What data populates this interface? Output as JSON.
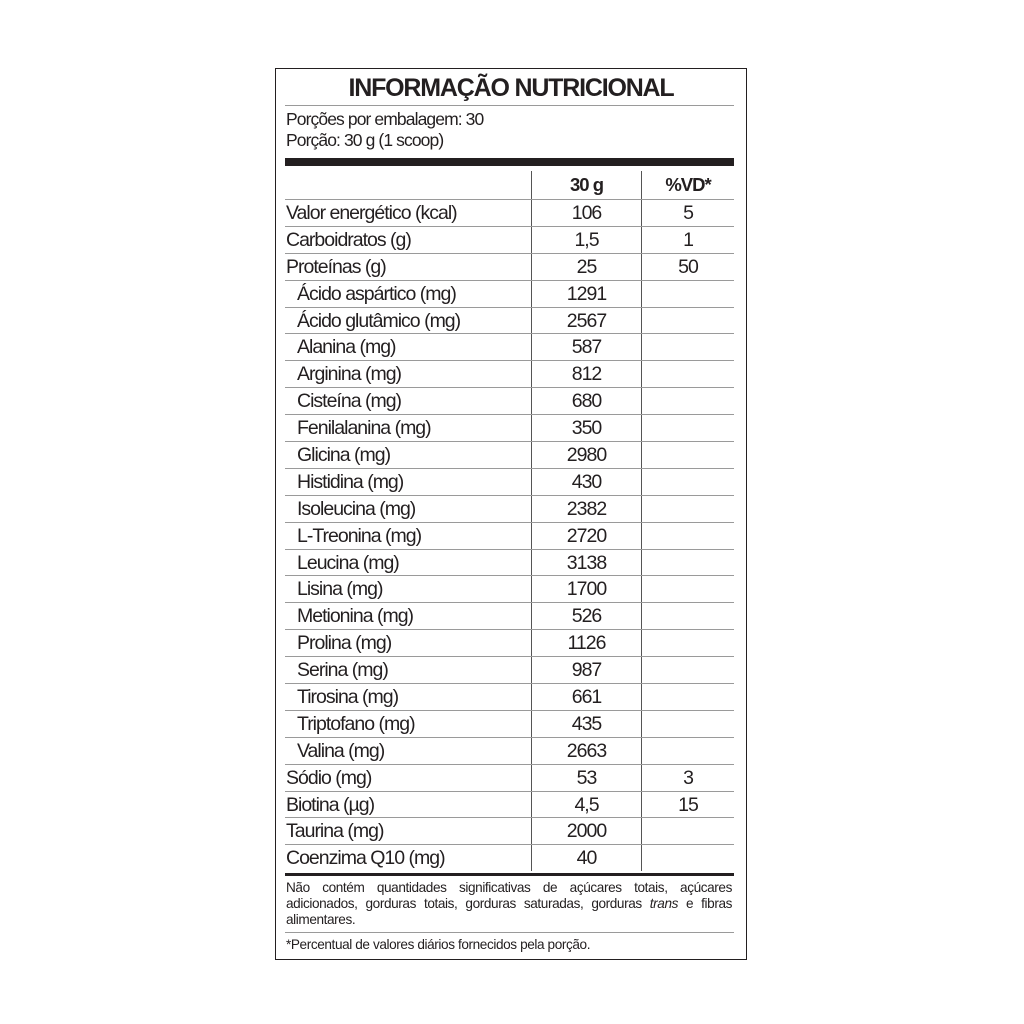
{
  "title": "INFORMAÇÃO NUTRICIONAL",
  "servings_per_package": "Porções por embalagem: 30",
  "serving_size": "Porção: 30 g (1 scoop)",
  "columns": {
    "amount": "30 g",
    "dv": "%VD*"
  },
  "rows": [
    {
      "name": "Valor energético (kcal)",
      "amount": "106",
      "dv": "5"
    },
    {
      "name": "Carboidratos (g)",
      "amount": "1,5",
      "dv": "1"
    },
    {
      "name": "Proteínas (g)",
      "amount": "25",
      "dv": "50"
    },
    {
      "name": "Ácido aspártico (mg)",
      "amount": "1291",
      "dv": "",
      "sub": true
    },
    {
      "name": "Ácido glutâmico (mg)",
      "amount": "2567",
      "dv": "",
      "sub": true
    },
    {
      "name": "Alanina (mg)",
      "amount": "587",
      "dv": "",
      "sub": true
    },
    {
      "name": "Arginina (mg)",
      "amount": "812",
      "dv": "",
      "sub": true
    },
    {
      "name": "Cisteína (mg)",
      "amount": "680",
      "dv": "",
      "sub": true
    },
    {
      "name": "Fenilalanina (mg)",
      "amount": "350",
      "dv": "",
      "sub": true
    },
    {
      "name": "Glicina (mg)",
      "amount": "2980",
      "dv": "",
      "sub": true
    },
    {
      "name": "Histidina (mg)",
      "amount": "430",
      "dv": "",
      "sub": true
    },
    {
      "name": "Isoleucina (mg)",
      "amount": "2382",
      "dv": "",
      "sub": true
    },
    {
      "name": "L-Treonina (mg)",
      "amount": "2720",
      "dv": "",
      "sub": true
    },
    {
      "name": "Leucina (mg)",
      "amount": "3138",
      "dv": "",
      "sub": true
    },
    {
      "name": "Lisina (mg)",
      "amount": "1700",
      "dv": "",
      "sub": true
    },
    {
      "name": "Metionina (mg)",
      "amount": "526",
      "dv": "",
      "sub": true
    },
    {
      "name": "Prolina (mg)",
      "amount": "1126",
      "dv": "",
      "sub": true
    },
    {
      "name": "Serina (mg)",
      "amount": "987",
      "dv": "",
      "sub": true
    },
    {
      "name": "Tirosina (mg)",
      "amount": "661",
      "dv": "",
      "sub": true
    },
    {
      "name": "Triptofano (mg)",
      "amount": "435",
      "dv": "",
      "sub": true
    },
    {
      "name": "Valina (mg)",
      "amount": "2663",
      "dv": "",
      "sub": true
    },
    {
      "name": "Sódio (mg)",
      "amount": "53",
      "dv": "3"
    },
    {
      "name": "Biotina (µg)",
      "amount": "4,5",
      "dv": "15"
    },
    {
      "name": "Taurina (mg)",
      "amount": "2000",
      "dv": ""
    },
    {
      "name": "Coenzima Q10 (mg)",
      "amount": "40",
      "dv": ""
    }
  ],
  "note": {
    "before": "Não contém quantidades significativas de açúcares totais, açúcares adicionados, gorduras totais, gorduras saturadas, gorduras ",
    "italic": "trans",
    "after": " e fibras alimentares."
  },
  "footnote": "*Percentual de valores diários fornecidos pela porção."
}
